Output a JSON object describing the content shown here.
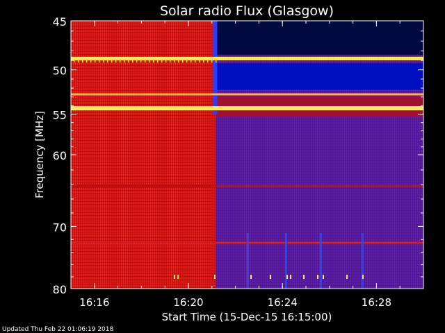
{
  "chart_data": {
    "type": "heatmap",
    "title": "Solar radio Flux (Glasgow)",
    "xlabel": "Start Time (15-Dec-15 16:15:00)",
    "ylabel": "Frequency [MHz]",
    "x_ticks": [
      "16:16",
      "16:20",
      "16:24",
      "16:28"
    ],
    "y_ticks": [
      45,
      50,
      55,
      60,
      70,
      80
    ],
    "x_range": [
      "16:15:00",
      "16:30:00"
    ],
    "ylim": [
      45,
      80
    ],
    "y_scale": "log",
    "transition_time": "16:21:10",
    "regions": [
      {
        "time": "before 16:21:10",
        "dominant_color": "#e01010"
      },
      {
        "time": "after 16:21:10",
        "dominant_color": "#5a1aa0"
      }
    ],
    "bright_bands_mhz": [
      48.8,
      52.7,
      54.3,
      64.2,
      72.5
    ],
    "colors": {
      "high": "#ffe860",
      "mid": "#e01010",
      "low": "#5a1aa0",
      "min": "#0010c0"
    }
  },
  "footer": {
    "updated": "Updated Thu Feb 22 01:06:19 2018"
  }
}
